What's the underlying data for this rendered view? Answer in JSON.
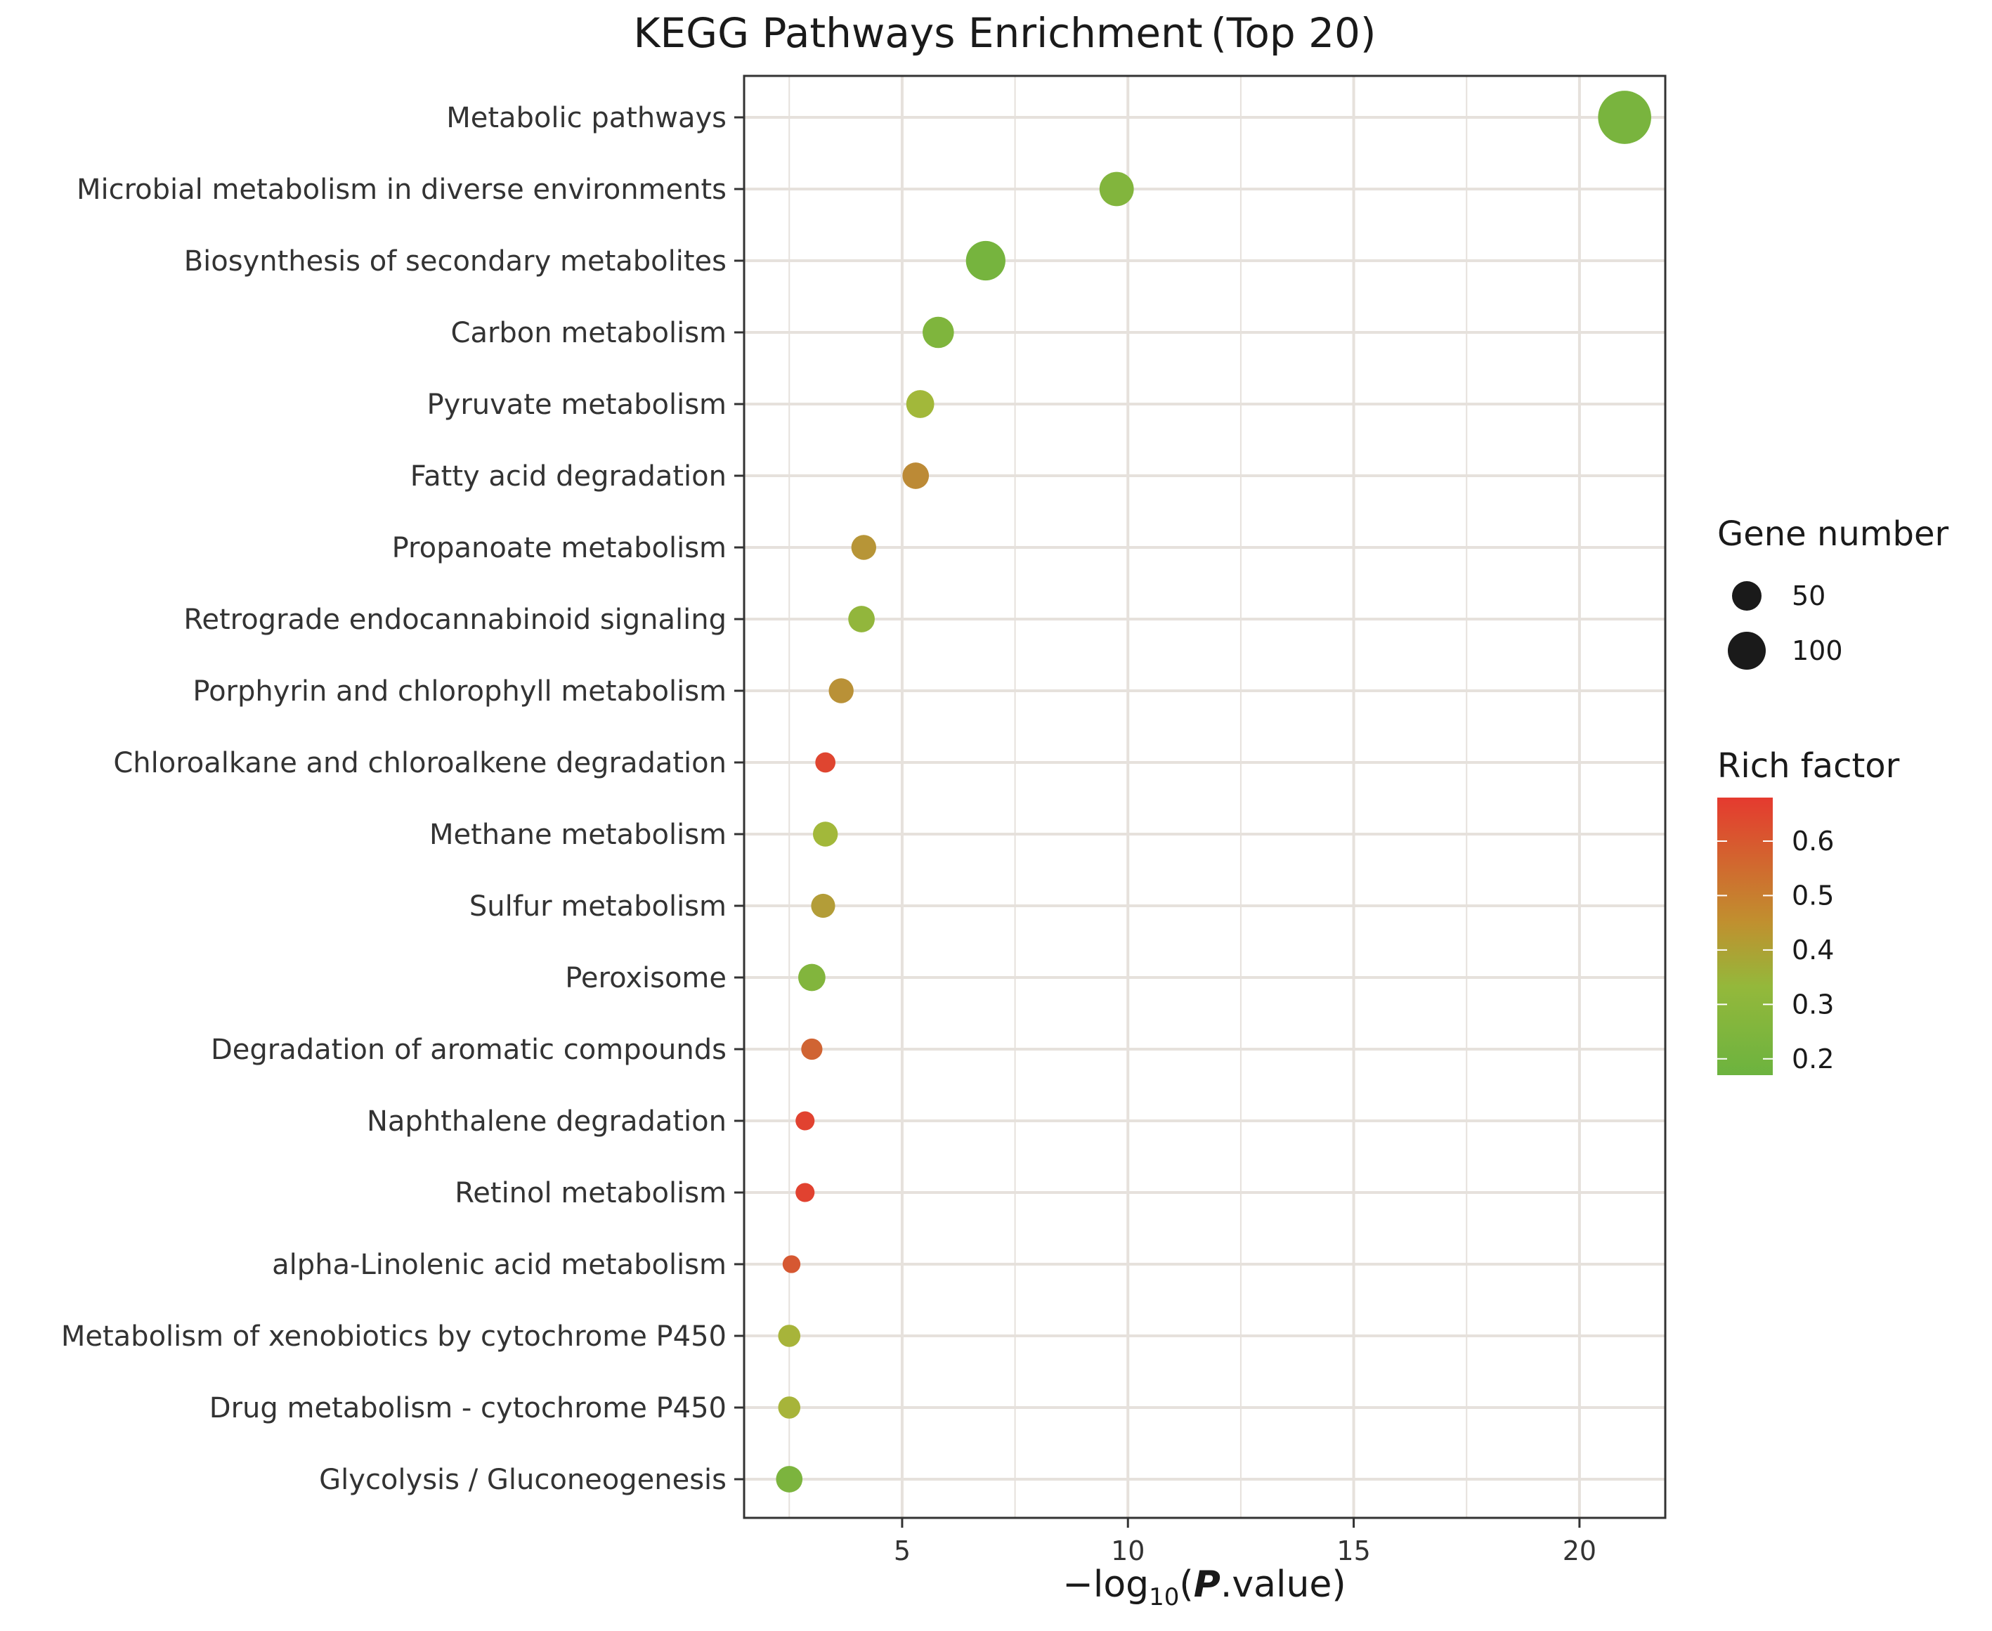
{
  "chart_data": {
    "type": "scatter",
    "title": "KEGG Pathways Enrichment (Top 20)",
    "xlabel": "−log10(P.value)",
    "xlabel_parts": {
      "prefix": "−log",
      "sub": "10",
      "open": "(",
      "italic": "P",
      "rest": ".value)"
    },
    "xlim": [
      1.5,
      21.9
    ],
    "xticks": [
      5,
      10,
      15,
      20
    ],
    "grid": true,
    "categories": [
      "Metabolic pathways",
      "Microbial metabolism in diverse environments",
      "Biosynthesis of secondary metabolites",
      "Carbon metabolism",
      "Pyruvate metabolism",
      "Fatty acid degradation",
      "Propanoate metabolism",
      "Retrograde endocannabinoid signaling",
      "Porphyrin and chlorophyll metabolism",
      "Chloroalkane and chloroalkene degradation",
      "Methane metabolism",
      "Sulfur metabolism",
      "Peroxisome",
      "Degradation of aromatic compounds",
      "Naphthalene degradation",
      "Retinol metabolism",
      "alpha-Linolenic acid metabolism",
      "Metabolism of xenobiotics by cytochrome P450",
      "Drug metabolism - cytochrome P450",
      "Glycolysis / Gluconeogenesis"
    ],
    "x": [
      21.0,
      9.75,
      6.85,
      5.8,
      5.4,
      5.3,
      4.15,
      4.1,
      3.65,
      3.3,
      3.3,
      3.25,
      3.0,
      3.0,
      2.85,
      2.85,
      2.55,
      2.5,
      2.5,
      2.5
    ],
    "gene_number": [
      140,
      52,
      72,
      42,
      32,
      28,
      24,
      28,
      24,
      14,
      24,
      22,
      30,
      16,
      12,
      12,
      10,
      18,
      18,
      28
    ],
    "rich_factor": [
      0.21,
      0.24,
      0.2,
      0.23,
      0.34,
      0.47,
      0.44,
      0.29,
      0.45,
      0.65,
      0.34,
      0.42,
      0.24,
      0.57,
      0.66,
      0.66,
      0.6,
      0.36,
      0.36,
      0.22
    ],
    "legends": {
      "size": {
        "title": "Gene number",
        "entries": [
          50,
          100
        ]
      },
      "color": {
        "title": "Rich factor",
        "min": 0.17,
        "max": 0.68,
        "ticks": [
          "0.6",
          "0.5",
          "0.4",
          "0.3",
          "0.2"
        ],
        "tick_values": [
          0.6,
          0.5,
          0.4,
          0.3,
          0.2
        ],
        "low_color": "#6cb33f",
        "mid_color": "#a5b83a",
        "high_color": "#e53a2f"
      }
    },
    "legend_position": "right"
  }
}
